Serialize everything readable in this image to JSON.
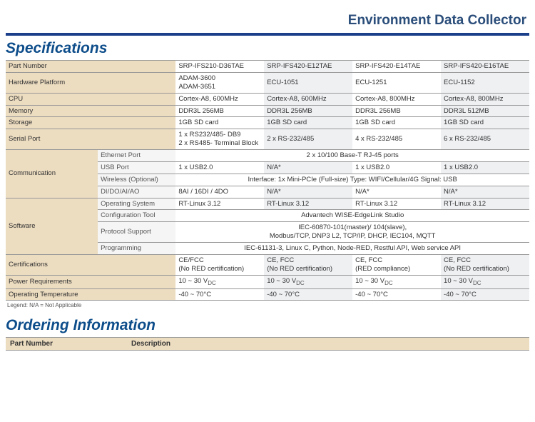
{
  "colors": {
    "brand_blue": "#0d4d8a",
    "rule_blue": "#1b3f8b",
    "title_blue": "#2a4d7a",
    "label_bg": "#ecdcc0",
    "sub_bg": "#f5f5f5",
    "alt_bg": "#eef0f2",
    "border": "#999999",
    "text": "#333333"
  },
  "page_title": "Environment Data Collector",
  "section_specs": "Specifications",
  "section_order": "Ordering Information",
  "legend": "Legend: N/A = Not Applicable",
  "spec": {
    "labels": {
      "part_number": "Part Number",
      "hardware_platform": "Hardware Platform",
      "cpu": "CPU",
      "memory": "Memory",
      "storage": "Storage",
      "serial_port": "Serial Port",
      "communication": "Communication",
      "software": "Software",
      "certifications": "Certifications",
      "power_requirements": "Power Requirements",
      "operating_temperature": "Operating Temperature"
    },
    "sub": {
      "ethernet": "Ethernet Port",
      "usb": "USB Port",
      "wireless": "Wireless (Optional)",
      "dio": "DI/DO/AI/AO",
      "os": "Operating System",
      "config": "Configuration Tool",
      "protocol": "Protocol Support",
      "programming": "Programming"
    },
    "cols": {
      "pn": [
        "SRP-IFS210-D36TAE",
        "SRP-IFS420-E12TAE",
        "SRP-IFS420-E14TAE",
        "SRP-IFS420-E16TAE"
      ],
      "hw": [
        "ADAM-3600\nADAM-3651",
        "ECU-1051",
        "ECU-1251",
        "ECU-1152"
      ],
      "cpu": [
        "Cortex-A8, 600MHz",
        "Cortex-A8, 600MHz",
        "Cortex-A8, 800MHz",
        "Cortex-A8, 800MHz"
      ],
      "mem": [
        "DDR3L 256MB",
        "DDR3L 256MB",
        "DDR3L 256MB",
        "DDR3L 512MB"
      ],
      "stor": [
        "1GB SD card",
        "1GB SD card",
        "1GB SD card",
        "1GB SD card"
      ],
      "ser": [
        "1 x RS232/485- DB9\n2 x RS485- Terminal Block",
        "2 x RS-232/485",
        "4 x RS-232/485",
        "6 x RS-232/485"
      ],
      "eth_span": "2 x 10/100 Base-T RJ-45 ports",
      "usb": [
        "1 x USB2.0",
        "N/A*",
        "1 x USB2.0",
        "1 x USB2.0"
      ],
      "wireless_span": "Interface: 1x Mini-PCIe (Full-size) Type: WIFI/Cellular/4G Signal: USB",
      "dio": [
        "8AI / 16DI / 4DO",
        "N/A*",
        "N/A*",
        "N/A*"
      ],
      "os": [
        "RT-Linux 3.12",
        "RT-Linux 3.12",
        "RT-Linux 3.12",
        "RT-Linux 3.12"
      ],
      "config_span": "Advantech WISE-EdgeLink Studio",
      "protocol_span": "IEC-60870-101(master)/ 104(slave),\nModbus/TCP, DNP3 L2, TCP/IP, DHCP, IEC104, MQTT",
      "programming_span": "IEC-61131-3, Linux C, Python, Node-RED, Restful API, Web service API",
      "cert": [
        "CE/FCC\n(No RED certification)",
        "CE, FCC\n(No RED certification)",
        "CE, FCC\n(RED compliance)",
        "CE, FCC\n(No RED certification)"
      ],
      "power": [
        "10 ~ 30 V",
        "10 ~ 30 V",
        "10 ~ 30 V",
        "10 ~ 30 V"
      ],
      "power_sub": "DC",
      "temp": [
        "-40 ~ 70°C",
        "-40 ~ 70°C",
        "-40 ~ 70°C",
        "-40 ~ 70°C"
      ]
    }
  },
  "order": {
    "headers": {
      "pn": "Part Number",
      "desc": "Description"
    }
  }
}
